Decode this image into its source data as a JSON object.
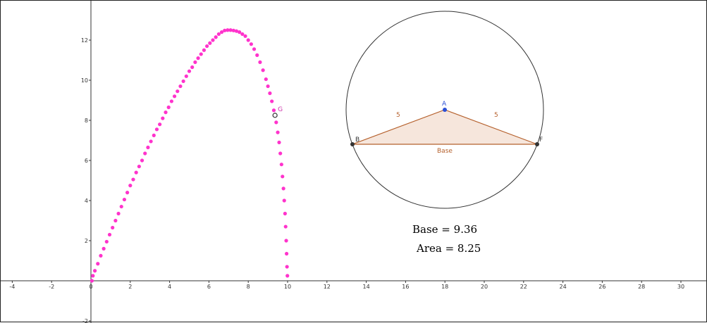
{
  "chart_data": {
    "type": "scatter",
    "title": "",
    "xlabel": "",
    "ylabel": "",
    "xlim": [
      -4.3,
      31
    ],
    "ylim": [
      -2.5,
      14
    ],
    "x_ticks": [
      -4,
      -2,
      0,
      2,
      4,
      6,
      8,
      10,
      12,
      14,
      16,
      18,
      20,
      22,
      24,
      26,
      28,
      30
    ],
    "y_ticks": [
      -2,
      2,
      4,
      6,
      8,
      10,
      12
    ],
    "grid": false,
    "series": [
      {
        "color": "#ff33cc",
        "points": [
          [
            0.05,
            0.0
          ],
          [
            0.1,
            0.25
          ],
          [
            0.2,
            0.5
          ],
          [
            0.35,
            0.85
          ],
          [
            0.5,
            1.25
          ],
          [
            0.65,
            1.6
          ],
          [
            0.8,
            1.95
          ],
          [
            0.95,
            2.3
          ],
          [
            1.1,
            2.65
          ],
          [
            1.25,
            3.0
          ],
          [
            1.4,
            3.35
          ],
          [
            1.55,
            3.7
          ],
          [
            1.7,
            4.05
          ],
          [
            1.85,
            4.4
          ],
          [
            2.0,
            4.75
          ],
          [
            2.15,
            5.05
          ],
          [
            2.3,
            5.4
          ],
          [
            2.45,
            5.7
          ],
          [
            2.6,
            6.0
          ],
          [
            2.75,
            6.35
          ],
          [
            2.9,
            6.65
          ],
          [
            3.05,
            6.95
          ],
          [
            3.2,
            7.25
          ],
          [
            3.35,
            7.55
          ],
          [
            3.5,
            7.8
          ],
          [
            3.65,
            8.1
          ],
          [
            3.8,
            8.4
          ],
          [
            3.95,
            8.65
          ],
          [
            4.1,
            8.95
          ],
          [
            4.25,
            9.2
          ],
          [
            4.4,
            9.45
          ],
          [
            4.55,
            9.7
          ],
          [
            4.7,
            9.95
          ],
          [
            4.85,
            10.2
          ],
          [
            5.0,
            10.45
          ],
          [
            5.15,
            10.65
          ],
          [
            5.3,
            10.9
          ],
          [
            5.45,
            11.1
          ],
          [
            5.6,
            11.3
          ],
          [
            5.75,
            11.5
          ],
          [
            5.9,
            11.7
          ],
          [
            6.05,
            11.85
          ],
          [
            6.2,
            12.0
          ],
          [
            6.35,
            12.15
          ],
          [
            6.5,
            12.3
          ],
          [
            6.65,
            12.4
          ],
          [
            6.8,
            12.48
          ],
          [
            6.95,
            12.5
          ],
          [
            7.1,
            12.5
          ],
          [
            7.25,
            12.48
          ],
          [
            7.4,
            12.45
          ],
          [
            7.55,
            12.4
          ],
          [
            7.7,
            12.3
          ],
          [
            7.85,
            12.2
          ],
          [
            8.0,
            12.0
          ],
          [
            8.15,
            11.8
          ],
          [
            8.3,
            11.55
          ],
          [
            8.45,
            11.25
          ],
          [
            8.6,
            10.9
          ],
          [
            8.75,
            10.5
          ],
          [
            8.9,
            10.05
          ],
          [
            9.0,
            9.7
          ],
          [
            9.1,
            9.35
          ],
          [
            9.2,
            8.95
          ],
          [
            9.3,
            8.5
          ],
          [
            9.36,
            8.25
          ],
          [
            9.42,
            7.9
          ],
          [
            9.5,
            7.4
          ],
          [
            9.57,
            6.9
          ],
          [
            9.63,
            6.35
          ],
          [
            9.69,
            5.8
          ],
          [
            9.74,
            5.2
          ],
          [
            9.79,
            4.6
          ],
          [
            9.83,
            4.0
          ],
          [
            9.87,
            3.35
          ],
          [
            9.9,
            2.7
          ],
          [
            9.93,
            2.0
          ],
          [
            9.95,
            1.35
          ],
          [
            9.97,
            0.7
          ],
          [
            9.99,
            0.25
          ]
        ]
      }
    ],
    "point_G": {
      "label": "G",
      "x": 9.36,
      "y": 8.25
    }
  },
  "construction": {
    "labels": {
      "A": "A",
      "B": "B",
      "F": "F",
      "side_AB": "5",
      "side_AF": "5",
      "base": "Base"
    },
    "colors": {
      "point_A": "#2a4fd6",
      "triangle_edge": "#b5602c",
      "triangle_fill": "#f6e6dc",
      "circle": "#333333"
    }
  },
  "readouts": {
    "base": "Base  =  9.36",
    "area": "Area  =  8.25"
  }
}
